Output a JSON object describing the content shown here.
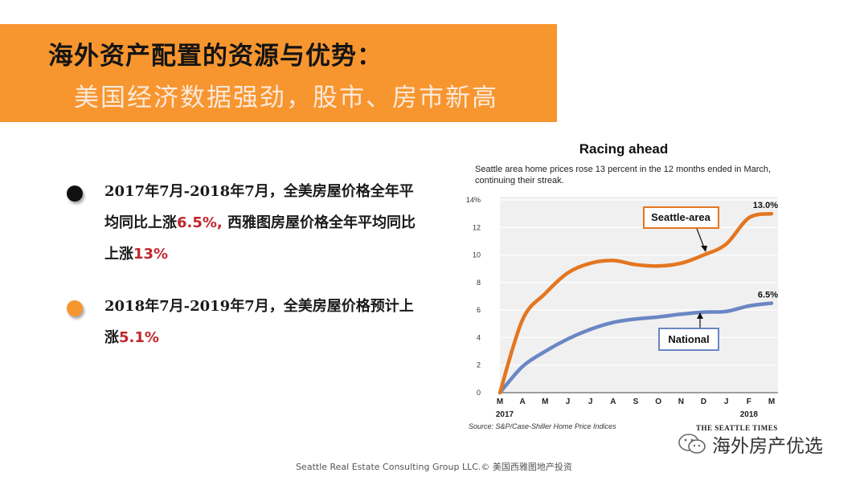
{
  "header": {
    "title": "海外资产配置的资源与优势：",
    "subtitle": "美国经济数据强劲，股市、房市新高"
  },
  "bullets": [
    {
      "parts": [
        "2017年7月-2018年7月，全美房屋价格全年平均同比上涨",
        "6.5%,",
        " 西雅图房屋价格全年平均同比上涨",
        "13%"
      ]
    },
    {
      "parts": [
        "2018年7月-2019年7月，全美房屋价格预计上涨",
        "5.1%"
      ]
    }
  ],
  "chart_data": {
    "type": "line",
    "title": "Racing ahead",
    "subtitle": "Seattle area home prices rose 13 percent in the 12 months ended in March, continuing their streak.",
    "categories": [
      "M",
      "A",
      "M",
      "J",
      "J",
      "A",
      "S",
      "O",
      "N",
      "D",
      "J",
      "F",
      "M"
    ],
    "year_labels": [
      {
        "index": 0,
        "label": "2017"
      },
      {
        "index": 11,
        "label": "2018"
      }
    ],
    "ylim": [
      0,
      14
    ],
    "yticks": [
      "0",
      "2",
      "4",
      "6",
      "8",
      "10",
      "12",
      "14%"
    ],
    "series": [
      {
        "name": "Seattle-area",
        "color": "#E4761F",
        "values": [
          0,
          5.3,
          7.2,
          8.7,
          9.4,
          9.6,
          9.3,
          9.2,
          9.4,
          10.0,
          10.8,
          12.7,
          13.0
        ],
        "end_label": "13.0%"
      },
      {
        "name": "National",
        "color": "#6A86C4",
        "values": [
          0,
          1.9,
          3.0,
          3.9,
          4.6,
          5.1,
          5.35,
          5.5,
          5.7,
          5.85,
          5.9,
          6.3,
          6.5
        ],
        "end_label": "6.5%"
      }
    ],
    "source": "Source: S&P/Case-Shiller Home Price Indices",
    "brand": "THE SEATTLE TIMES"
  },
  "watermark": {
    "text": "海外房产优选",
    "icon": "wechat-icon"
  },
  "footer": "Seattle Real Estate Consulting Group LLC.© 美国西雅图地产投资",
  "colors": {
    "accent": "#F7962F",
    "highlight": "#C0272D"
  }
}
